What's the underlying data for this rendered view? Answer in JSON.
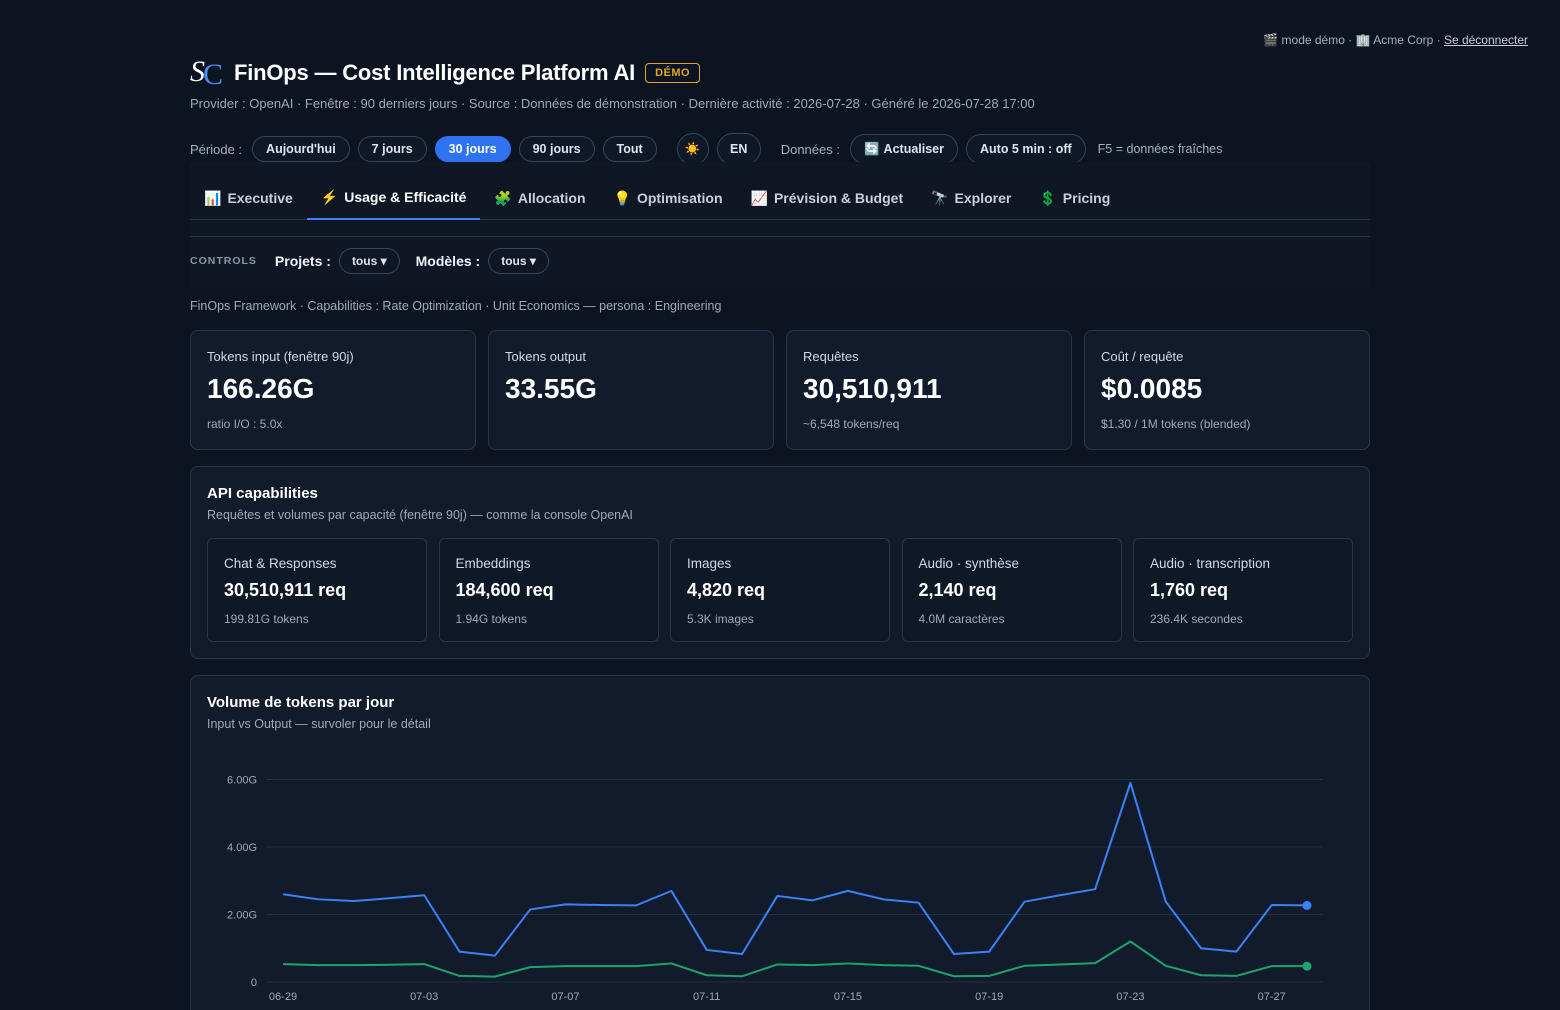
{
  "topbar": {
    "mode_icon": "🎬",
    "mode": "mode démo",
    "org_icon": "🏢",
    "org": "Acme Corp",
    "sep": "·",
    "logout": "Se déconnecter"
  },
  "header": {
    "logo_s": "S",
    "logo_c": "C",
    "title": "FinOps — Cost Intelligence Platform AI",
    "badge": "DÉMO",
    "subtitle": "Provider : OpenAI · Fenêtre : 90 derniers jours · Source : Données de démonstration · Dernière activité : 2026-07-28 · Généré le 2026-07-28 17:00"
  },
  "period": {
    "label": "Période :",
    "options": [
      "Aujourd'hui",
      "7 jours",
      "30 jours",
      "90 jours",
      "Tout"
    ],
    "active_index": 2,
    "theme_icon": "☀️",
    "lang": "EN",
    "data_label": "Données :",
    "refresh_icon": "🔄",
    "refresh": "Actualiser",
    "auto": "Auto 5 min : off",
    "hint": "F5 = données fraîches"
  },
  "tabs": [
    {
      "icon": "📊",
      "label": "Executive"
    },
    {
      "icon": "⚡",
      "label": "Usage & Efficacité"
    },
    {
      "icon": "🧩",
      "label": "Allocation"
    },
    {
      "icon": "💡",
      "label": "Optimisation"
    },
    {
      "icon": "📈",
      "label": "Prévision & Budget"
    },
    {
      "icon": "🔭",
      "label": "Explorer"
    },
    {
      "icon": "💲",
      "label": "Pricing"
    }
  ],
  "active_tab": 1,
  "controls": {
    "title": "CONTROLS",
    "projects_label": "Projets :",
    "projects_value": "tous ▾",
    "models_label": "Modèles :",
    "models_value": "tous ▾"
  },
  "framework": "FinOps Framework · Capabilities : Rate Optimization · Unit Economics — persona : Engineering",
  "kpis": [
    {
      "label": "Tokens input (fenêtre 90j)",
      "value": "166.26G",
      "sub": "ratio I/O : 5.0x"
    },
    {
      "label": "Tokens output",
      "value": "33.55G",
      "sub": ""
    },
    {
      "label": "Requêtes",
      "value": "30,510,911",
      "sub": "~6,548 tokens/req"
    },
    {
      "label": "Coût / requête",
      "value": "$0.0085",
      "sub": "$1.30 / 1M tokens (blended)"
    }
  ],
  "api": {
    "title": "API capabilities",
    "subtitle": "Requêtes et volumes par capacité (fenêtre 90j) — comme la console OpenAI",
    "items": [
      {
        "label": "Chat & Responses",
        "value": "30,510,911 req",
        "sub": "199.81G tokens"
      },
      {
        "label": "Embeddings",
        "value": "184,600 req",
        "sub": "1.94G tokens"
      },
      {
        "label": "Images",
        "value": "4,820 req",
        "sub": "5.3K images"
      },
      {
        "label": "Audio · synthèse",
        "value": "2,140 req",
        "sub": "4.0M caractères"
      },
      {
        "label": "Audio · transcription",
        "value": "1,760 req",
        "sub": "236.4K secondes"
      }
    ]
  },
  "chart": {
    "title": "Volume de tokens par jour",
    "subtitle": "Input vs Output — survoler pour le détail"
  },
  "chart_data": {
    "type": "line",
    "x": [
      "06-29",
      "06-30",
      "07-01",
      "07-02",
      "07-03",
      "07-04",
      "07-05",
      "07-06",
      "07-07",
      "07-08",
      "07-09",
      "07-10",
      "07-11",
      "07-12",
      "07-13",
      "07-14",
      "07-15",
      "07-16",
      "07-17",
      "07-18",
      "07-19",
      "07-20",
      "07-21",
      "07-22",
      "07-23",
      "07-24",
      "07-25",
      "07-26",
      "07-27",
      "07-28"
    ],
    "xticks": [
      "06-29",
      "07-03",
      "07-07",
      "07-11",
      "07-15",
      "07-19",
      "07-23",
      "07-27"
    ],
    "yticks": [
      0,
      2,
      4,
      6
    ],
    "ytick_labels": [
      "0",
      "2.00G",
      "4.00G",
      "6.00G"
    ],
    "ylim": [
      0,
      6.4
    ],
    "series": [
      {
        "color": "#3b82f6",
        "values": [
          2.6,
          2.45,
          2.4,
          2.48,
          2.57,
          0.9,
          0.78,
          2.15,
          2.3,
          2.28,
          2.27,
          2.7,
          0.95,
          0.83,
          2.55,
          2.42,
          2.7,
          2.45,
          2.35,
          0.83,
          0.9,
          2.38,
          2.57,
          2.75,
          5.9,
          2.38,
          1.0,
          0.9,
          2.28,
          2.27
        ]
      },
      {
        "color": "#1fa36d",
        "values": [
          0.53,
          0.5,
          0.5,
          0.51,
          0.53,
          0.18,
          0.16,
          0.44,
          0.47,
          0.47,
          0.47,
          0.55,
          0.2,
          0.17,
          0.52,
          0.5,
          0.55,
          0.5,
          0.48,
          0.17,
          0.18,
          0.48,
          0.52,
          0.56,
          1.2,
          0.48,
          0.2,
          0.18,
          0.47,
          0.47
        ]
      }
    ],
    "grid": true
  }
}
